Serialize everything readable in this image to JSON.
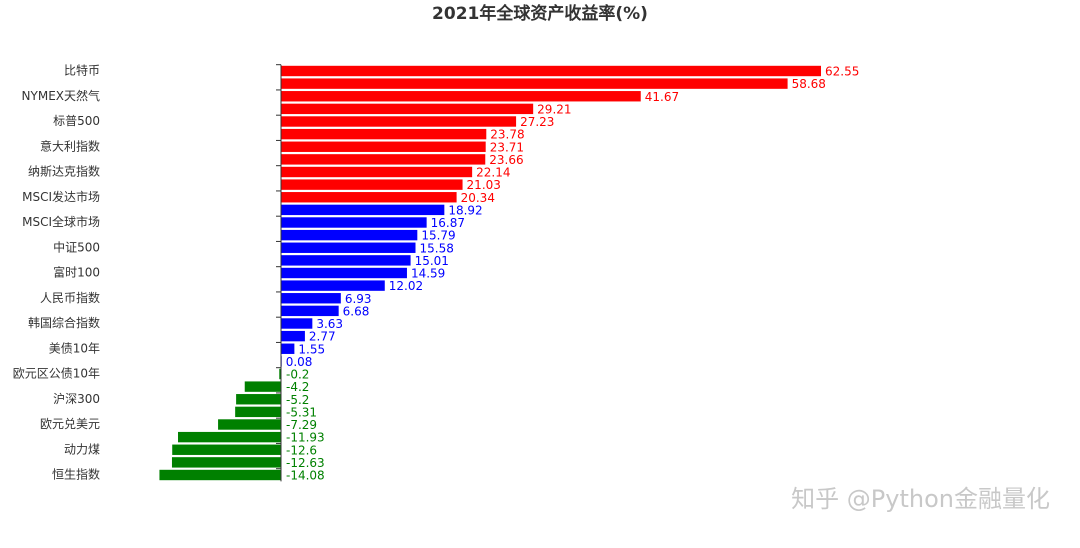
{
  "chart_data": {
    "type": "hbar",
    "title": "2021年全球资产收益率(%)",
    "watermark": "知乎 @Python金融量化",
    "categories": [
      "比特币",
      null,
      "NYMEX天然气",
      null,
      "标普500",
      null,
      "意大利指数",
      null,
      "纳斯达克指数",
      null,
      "MSCI发达市场",
      null,
      "MSCI全球市场",
      null,
      "中证500",
      null,
      "富时100",
      null,
      "人民币指数",
      null,
      "韩国综合指数",
      null,
      "美债10年",
      null,
      "欧元区公债10年",
      null,
      "沪深300",
      null,
      "欧元兑美元",
      null,
      "动力煤",
      null,
      "恒生指数"
    ],
    "values": [
      62.55,
      58.68,
      41.67,
      29.21,
      27.23,
      23.78,
      23.71,
      23.66,
      22.14,
      21.03,
      20.34,
      18.92,
      16.87,
      15.79,
      15.58,
      15.01,
      14.59,
      12.02,
      6.93,
      6.68,
      3.63,
      2.77,
      1.55,
      0.08,
      -0.2,
      -4.2,
      -5.2,
      -5.31,
      -7.29,
      -11.93,
      -12.6,
      -12.63,
      -14.08
    ],
    "colors": [
      "#ff0000",
      "#ff0000",
      "#ff0000",
      "#ff0000",
      "#ff0000",
      "#ff0000",
      "#ff0000",
      "#ff0000",
      "#ff0000",
      "#ff0000",
      "#ff0000",
      "#0000ff",
      "#0000ff",
      "#0000ff",
      "#0000ff",
      "#0000ff",
      "#0000ff",
      "#0000ff",
      "#0000ff",
      "#0000ff",
      "#0000ff",
      "#0000ff",
      "#0000ff",
      "#0000ff",
      "#008000",
      "#008000",
      "#008000",
      "#008000",
      "#008000",
      "#008000",
      "#008000",
      "#008000",
      "#008000"
    ]
  }
}
